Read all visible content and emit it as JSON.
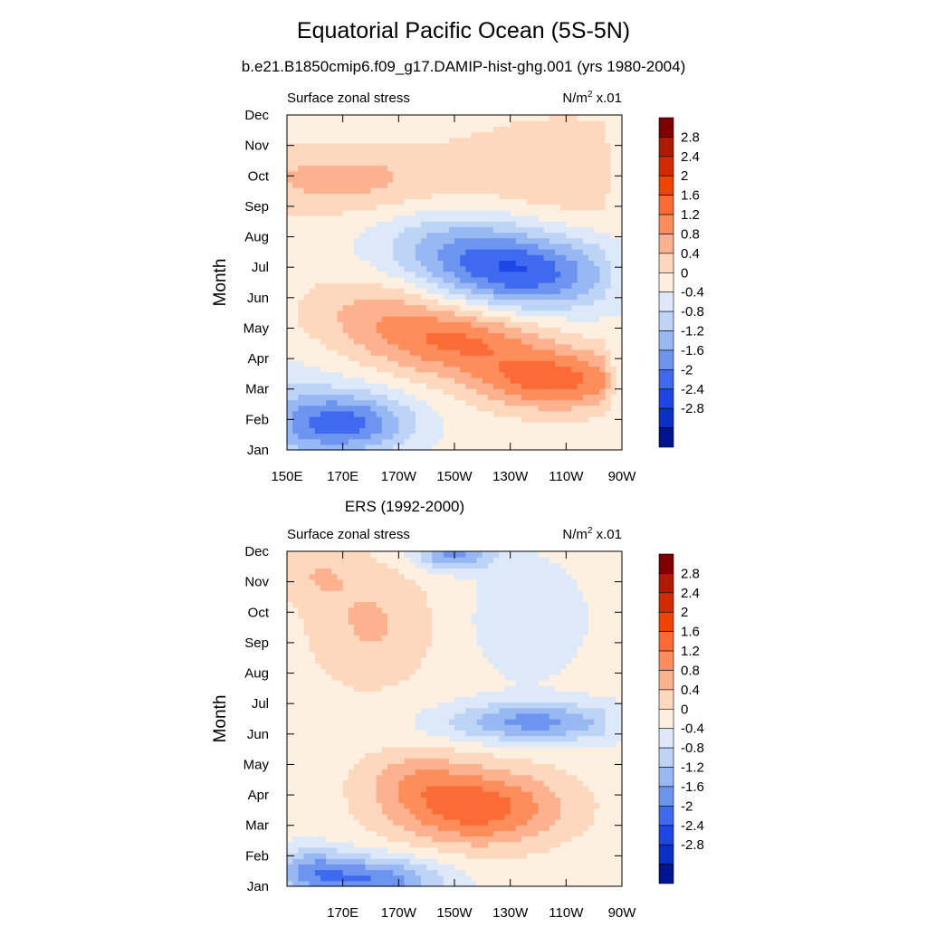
{
  "figure": {
    "title": "Equatorial Pacific Ocean (5S-5N)",
    "subtitle": "b.e21.B1850cmip6.f09_g17.DAMIP-hist-ghg.001 (yrs 1980-2004)"
  },
  "colorbar": {
    "labels": [
      "2.8",
      "2.4",
      "2",
      "1.6",
      "1.2",
      "0.8",
      "0.4",
      "0",
      "-0.4",
      "-0.8",
      "-1.2",
      "-1.6",
      "-2",
      "-2.4",
      "-2.8"
    ],
    "colors": [
      "#7f0000",
      "#b01a00",
      "#d42a00",
      "#ef4300",
      "#fc6a36",
      "#fd8d5a",
      "#fdb28f",
      "#fdd8bd",
      "#fdf0e1",
      "#dde9f8",
      "#bdd4f6",
      "#98b8f4",
      "#6d95ef",
      "#3e6af0",
      "#1c46e6",
      "#0a2fc4",
      "#00148f"
    ]
  },
  "chart_data": [
    {
      "type": "heatmap",
      "panel_title": "",
      "left_label": "Surface zonal stress",
      "right_label": "N/m",
      "right_label_sup": "2",
      "right_label_suffix": " x.01",
      "ylabel": "Month",
      "xlabel": "",
      "y_ticks": [
        "Jan",
        "Feb",
        "Mar",
        "Apr",
        "May",
        "Jun",
        "Jul",
        "Aug",
        "Sep",
        "Oct",
        "Nov",
        "Dec"
      ],
      "x_ticks": [
        "150E",
        "170E",
        "170W",
        "150W",
        "130W",
        "110W",
        "90W"
      ],
      "x_range": [
        150,
        270
      ],
      "levels": [
        -2.8,
        -2.4,
        -2,
        -1.6,
        -1.2,
        -0.8,
        -0.4,
        0,
        0.4,
        0.8,
        1.2,
        1.6,
        2,
        2.4,
        2.8
      ],
      "features": [
        {
          "lon": 172,
          "month": 1.9,
          "value": -1.8,
          "sx": 16,
          "sy": 0.7
        },
        {
          "lon": 150,
          "month": 2.0,
          "value": -0.6,
          "sx": 14,
          "sy": 1.3
        },
        {
          "lon": 236,
          "month": 6.8,
          "value": -1.9,
          "sx": 22,
          "sy": 0.9
        },
        {
          "lon": 210,
          "month": 7.7,
          "value": -1.0,
          "sx": 20,
          "sy": 0.9
        },
        {
          "lon": 212,
          "month": 4.6,
          "value": 1.4,
          "sx": 22,
          "sy": 0.8
        },
        {
          "lon": 246,
          "month": 3.3,
          "value": 1.6,
          "sx": 20,
          "sy": 0.7
        },
        {
          "lon": 182,
          "month": 5.6,
          "value": 0.7,
          "sx": 20,
          "sy": 0.9
        },
        {
          "lon": 168,
          "month": 9.9,
          "value": 0.8,
          "sx": 28,
          "sy": 0.8
        },
        {
          "lon": 250,
          "month": 10.2,
          "value": 0.6,
          "sx": 30,
          "sy": 1.3
        }
      ]
    },
    {
      "type": "heatmap",
      "panel_title": "ERS (1992-2000)",
      "left_label": "Surface zonal stress",
      "right_label": "N/m",
      "right_label_sup": "2",
      "right_label_suffix": " x.01",
      "ylabel": "Month",
      "xlabel": "",
      "y_ticks": [
        "Jan",
        "Feb",
        "Mar",
        "Apr",
        "May",
        "Jun",
        "Jul",
        "Aug",
        "Sep",
        "Oct",
        "Nov",
        "Dec"
      ],
      "x_ticks": [
        "",
        "170E",
        "170W",
        "150W",
        "130W",
        "110W",
        "90W"
      ],
      "x_range": [
        150,
        270
      ],
      "levels": [
        -2.8,
        -2.4,
        -2,
        -1.6,
        -1.2,
        -0.8,
        -0.4,
        0,
        0.4,
        0.8,
        1.2,
        1.6,
        2,
        2.4,
        2.8
      ],
      "features": [
        {
          "lon": 180,
          "month": 1.2,
          "value": -1.7,
          "sx": 18,
          "sy": 0.55
        },
        {
          "lon": 158,
          "month": 1.6,
          "value": -1.0,
          "sx": 10,
          "sy": 0.5
        },
        {
          "lon": 238,
          "month": 6.4,
          "value": -1.5,
          "sx": 22,
          "sy": 0.45
        },
        {
          "lon": 210,
          "month": 11.9,
          "value": -1.5,
          "sx": 10,
          "sy": 0.35
        },
        {
          "lon": 236,
          "month": 9.8,
          "value": -0.5,
          "sx": 14,
          "sy": 1.3
        },
        {
          "lon": 218,
          "month": 3.6,
          "value": 1.7,
          "sx": 22,
          "sy": 0.9
        },
        {
          "lon": 195,
          "month": 4.6,
          "value": 0.6,
          "sx": 14,
          "sy": 0.7
        },
        {
          "lon": 180,
          "month": 9.6,
          "value": 0.7,
          "sx": 16,
          "sy": 1.5
        },
        {
          "lon": 160,
          "month": 11.3,
          "value": 0.5,
          "sx": 10,
          "sy": 0.7
        }
      ]
    }
  ]
}
